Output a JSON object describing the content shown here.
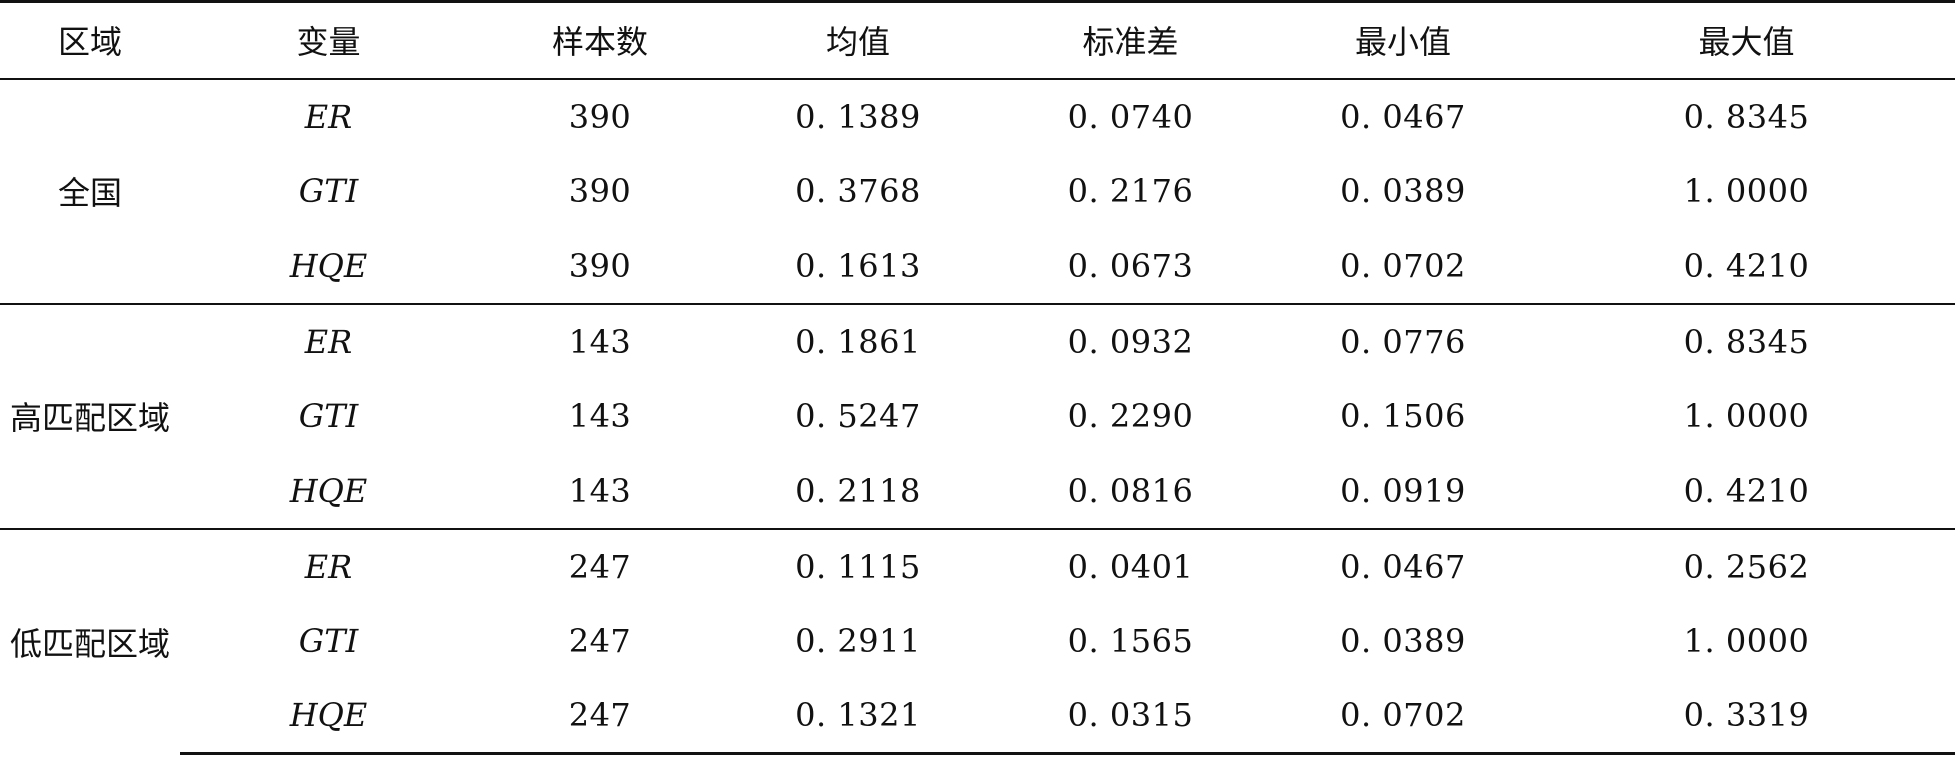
{
  "table": {
    "headers": [
      "区域",
      "变量",
      "样本数",
      "均值",
      "标准差",
      "最小值",
      "最大值"
    ],
    "groups": [
      {
        "region": "全国",
        "rows": [
          {
            "var": "ER",
            "n": "390",
            "mean": "0. 1389",
            "sd": "0. 0740",
            "min": "0. 0467",
            "max": "0. 8345"
          },
          {
            "var": "GTI",
            "n": "390",
            "mean": "0. 3768",
            "sd": "0. 2176",
            "min": "0. 0389",
            "max": "1. 0000"
          },
          {
            "var": "HQE",
            "n": "390",
            "mean": "0. 1613",
            "sd": "0. 0673",
            "min": "0. 0702",
            "max": "0. 4210"
          }
        ]
      },
      {
        "region": "高匹配区域",
        "rows": [
          {
            "var": "ER",
            "n": "143",
            "mean": "0. 1861",
            "sd": "0. 0932",
            "min": "0. 0776",
            "max": "0. 8345"
          },
          {
            "var": "GTI",
            "n": "143",
            "mean": "0. 5247",
            "sd": "0. 2290",
            "min": "0. 1506",
            "max": "1. 0000"
          },
          {
            "var": "HQE",
            "n": "143",
            "mean": "0. 2118",
            "sd": "0. 0816",
            "min": "0. 0919",
            "max": "0. 4210"
          }
        ]
      },
      {
        "region": "低匹配区域",
        "rows": [
          {
            "var": "ER",
            "n": "247",
            "mean": "0. 1115",
            "sd": "0. 0401",
            "min": "0. 0467",
            "max": "0. 2562"
          },
          {
            "var": "GTI",
            "n": "247",
            "mean": "0. 2911",
            "sd": "0. 1565",
            "min": "0. 0389",
            "max": "1. 0000"
          },
          {
            "var": "HQE",
            "n": "247",
            "mean": "0. 1321",
            "sd": "0. 0315",
            "min": "0. 0702",
            "max": "0. 3319"
          }
        ]
      }
    ]
  }
}
